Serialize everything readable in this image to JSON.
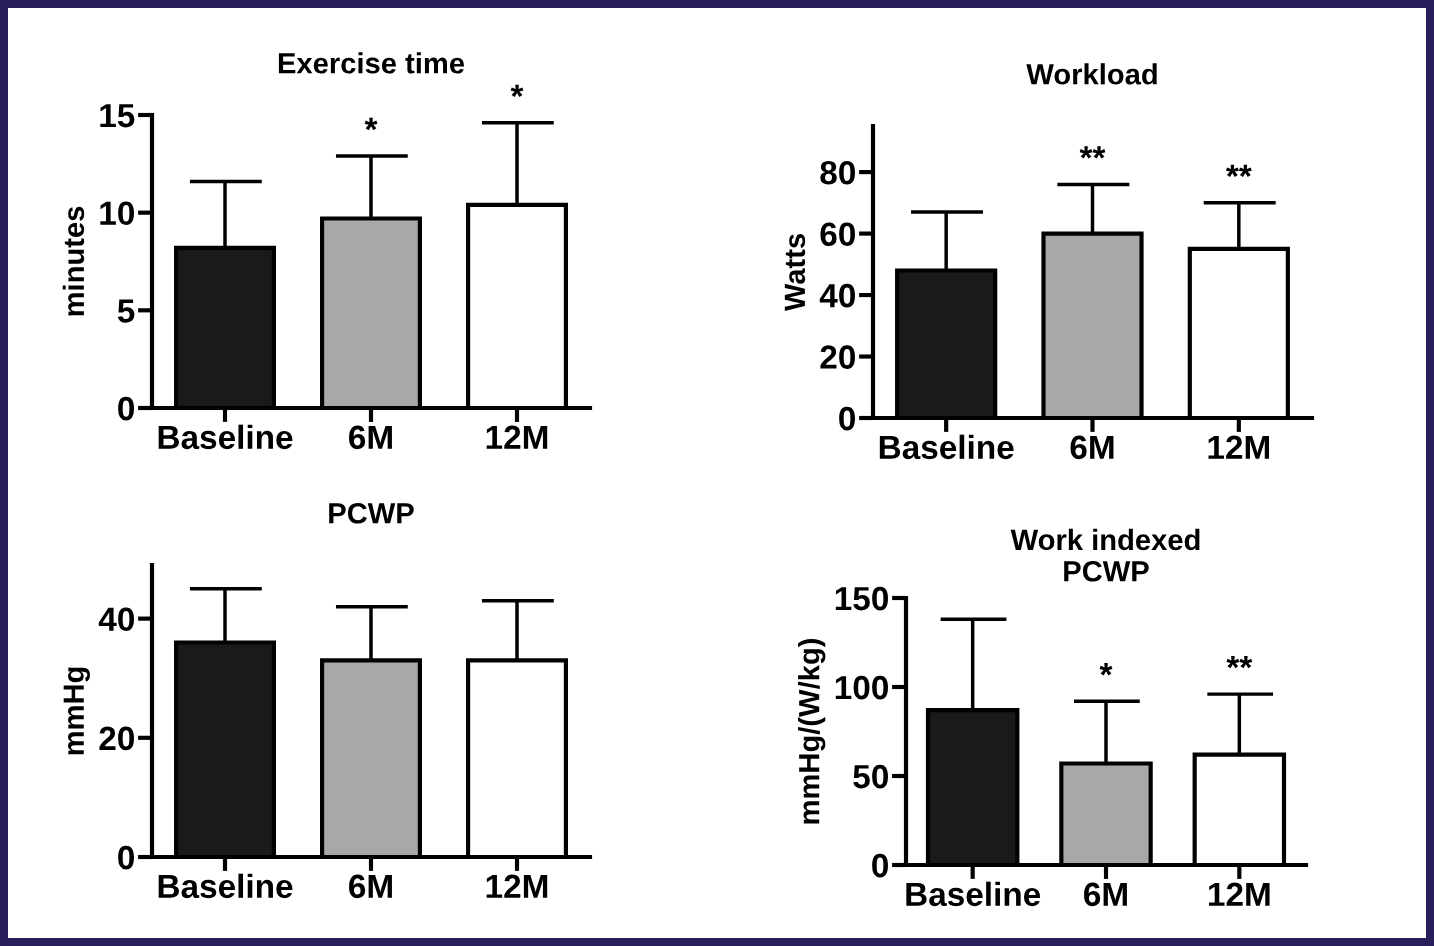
{
  "chart_data": [
    {
      "type": "bar",
      "title": "Exercise time",
      "ylabel": "minutes",
      "categories": [
        "Baseline",
        "6M",
        "12M"
      ],
      "values": [
        8.2,
        9.7,
        10.4
      ],
      "colors": [
        "#1a1a1a",
        "#a8a8a8",
        "#ffffff"
      ],
      "errors": [
        [
          8.2,
          11.6
        ],
        [
          9.7,
          12.9
        ],
        [
          10.4,
          14.6
        ]
      ],
      "ylim": [
        0,
        15
      ],
      "yticks": [
        0,
        5,
        10,
        15
      ],
      "grid": false,
      "legend": false,
      "annotations": [
        {
          "text": "*",
          "x": "6M",
          "y": 12.9
        },
        {
          "text": "*",
          "x": "12M",
          "y": 14.6
        }
      ]
    },
    {
      "type": "bar",
      "title": "Workload",
      "ylabel": "Watts",
      "categories": [
        "Baseline",
        "6M",
        "12M"
      ],
      "values": [
        48,
        60,
        55
      ],
      "colors": [
        "#1a1a1a",
        "#a8a8a8",
        "#ffffff"
      ],
      "errors": [
        [
          48,
          67
        ],
        [
          60,
          76
        ],
        [
          55,
          70
        ]
      ],
      "ylim": [
        0,
        95
      ],
      "yticks": [
        0,
        20,
        40,
        60,
        80
      ],
      "grid": false,
      "legend": false,
      "annotations": [
        {
          "text": "**",
          "x": "6M",
          "y": 76
        },
        {
          "text": "**",
          "x": "12M",
          "y": 70
        }
      ]
    },
    {
      "type": "bar",
      "title": "PCWP",
      "ylabel": "mmHg",
      "categories": [
        "Baseline",
        "6M",
        "12M"
      ],
      "values": [
        36,
        33,
        33
      ],
      "colors": [
        "#1a1a1a",
        "#a8a8a8",
        "#ffffff"
      ],
      "errors": [
        [
          36,
          45
        ],
        [
          33,
          42
        ],
        [
          33,
          43
        ]
      ],
      "ylim": [
        0,
        49
      ],
      "yticks": [
        0,
        20,
        40
      ],
      "grid": false,
      "legend": false
    },
    {
      "type": "bar",
      "title": "Work indexed\nPCWP",
      "ylabel": "mmHg/(W/kg)",
      "categories": [
        "Baseline",
        "6M",
        "12M"
      ],
      "values": [
        87,
        57,
        62
      ],
      "colors": [
        "#1a1a1a",
        "#a8a8a8",
        "#ffffff"
      ],
      "errors": [
        [
          87,
          138
        ],
        [
          57,
          92
        ],
        [
          62,
          96
        ]
      ],
      "ylim": [
        0,
        150
      ],
      "yticks": [
        0,
        50,
        100,
        150
      ],
      "grid": false,
      "legend": false,
      "annotations": [
        {
          "text": "*",
          "x": "6M",
          "y": 92
        },
        {
          "text": "**",
          "x": "12M",
          "y": 96
        }
      ]
    }
  ]
}
